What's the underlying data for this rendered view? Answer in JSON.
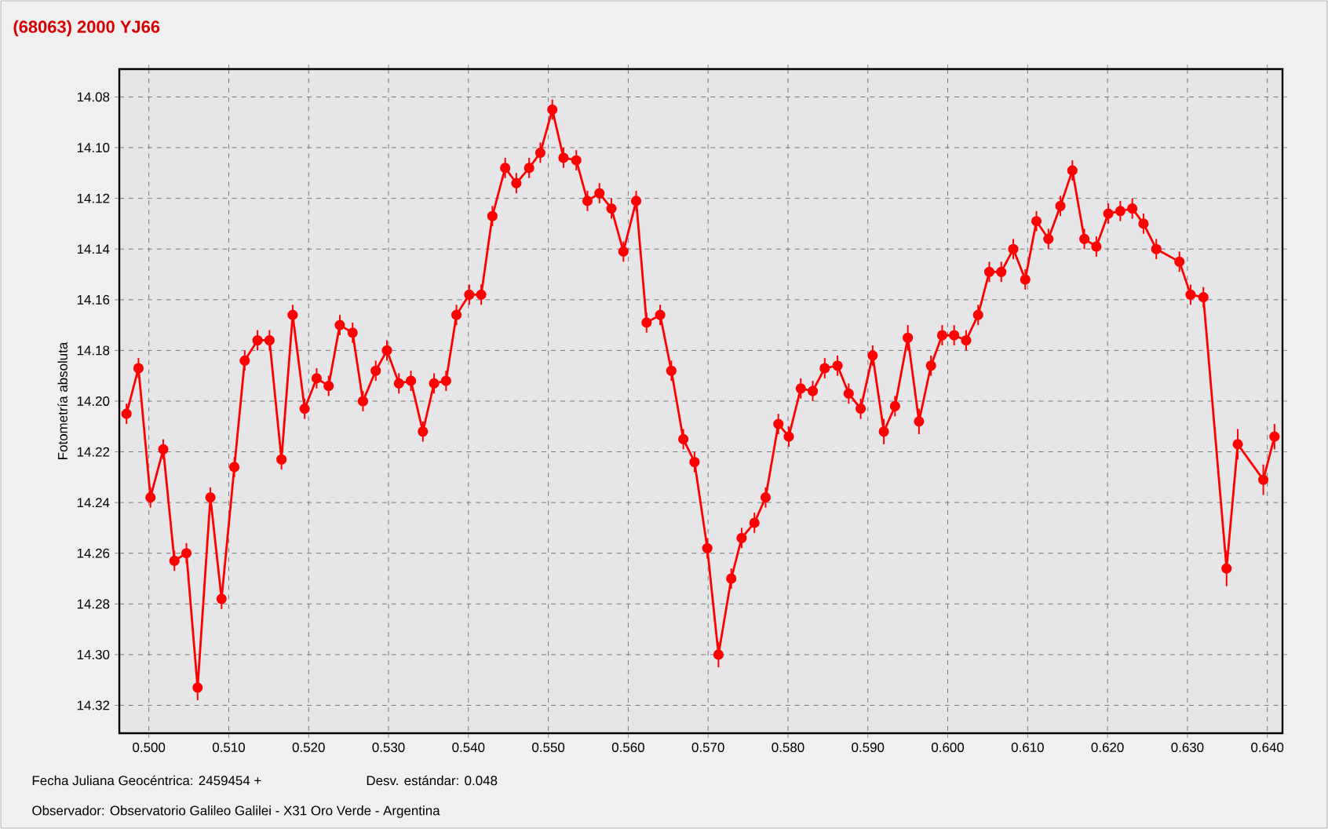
{
  "chart_data": {
    "type": "line",
    "title": "(68063) 2000 YJ66",
    "ylabel": "Fotometría absoluta",
    "annotations": [
      "Fecha Juliana Geocéntrica: 2459454 +",
      "Desv. estándar: 0.048",
      "Observador: Observatorio Galileo Galilei - X31 Oro Verde - Argentina"
    ],
    "x": [
      0.4972,
      0.4987,
      0.5002,
      0.5018,
      0.5032,
      0.5047,
      0.5061,
      0.5077,
      0.5091,
      0.5107,
      0.512,
      0.5136,
      0.5151,
      0.5166,
      0.518,
      0.5195,
      0.521,
      0.5225,
      0.5239,
      0.5255,
      0.5268,
      0.5284,
      0.5298,
      0.5313,
      0.5328,
      0.5343,
      0.5357,
      0.5372,
      0.5385,
      0.5401,
      0.5416,
      0.543,
      0.5446,
      0.546,
      0.5476,
      0.549,
      0.5505,
      0.5519,
      0.5535,
      0.5549,
      0.5564,
      0.5579,
      0.5594,
      0.561,
      0.5623,
      0.564,
      0.5654,
      0.5669,
      0.5683,
      0.5699,
      0.5713,
      0.5729,
      0.5742,
      0.5758,
      0.5772,
      0.5788,
      0.5801,
      0.5816,
      0.5831,
      0.5846,
      0.5862,
      0.5876,
      0.5891,
      0.5906,
      0.592,
      0.5934,
      0.595,
      0.5964,
      0.5979,
      0.5993,
      0.6008,
      0.6023,
      0.6038,
      0.6052,
      0.6067,
      0.6082,
      0.6097,
      0.6111,
      0.6126,
      0.6141,
      0.6156,
      0.6171,
      0.6186,
      0.6201,
      0.6216,
      0.6231,
      0.6245,
      0.6261,
      0.629,
      0.6304,
      0.632,
      0.6349,
      0.6363,
      0.6395,
      0.6409
    ],
    "series": [
      {
        "color": "#ff0000",
        "values": [
          14.205,
          14.187,
          14.238,
          14.219,
          14.263,
          14.26,
          14.313,
          14.238,
          14.278,
          14.226,
          14.184,
          14.176,
          14.176,
          14.223,
          14.166,
          14.203,
          14.191,
          14.194,
          14.17,
          14.173,
          14.2,
          14.188,
          14.18,
          14.193,
          14.192,
          14.212,
          14.193,
          14.192,
          14.166,
          14.158,
          14.158,
          14.127,
          14.108,
          14.114,
          14.108,
          14.102,
          14.085,
          14.104,
          14.105,
          14.121,
          14.118,
          14.124,
          14.141,
          14.121,
          14.169,
          14.166,
          14.188,
          14.215,
          14.224,
          14.258,
          14.3,
          14.27,
          14.254,
          14.248,
          14.238,
          14.209,
          14.214,
          14.195,
          14.196,
          14.187,
          14.186,
          14.197,
          14.203,
          14.182,
          14.212,
          14.202,
          14.175,
          14.208,
          14.186,
          14.174,
          14.174,
          14.176,
          14.166,
          14.149,
          14.149,
          14.14,
          14.152,
          14.129,
          14.136,
          14.123,
          14.109,
          14.136,
          14.139,
          14.126,
          14.125,
          14.124,
          14.13,
          14.14,
          14.145,
          14.158,
          14.159,
          14.266,
          14.217,
          14.231,
          14.214
        ],
        "errors": [
          0.004,
          0.004,
          0.004,
          0.004,
          0.004,
          0.004,
          0.005,
          0.004,
          0.004,
          0.004,
          0.004,
          0.004,
          0.004,
          0.004,
          0.004,
          0.004,
          0.004,
          0.004,
          0.004,
          0.004,
          0.004,
          0.004,
          0.004,
          0.004,
          0.004,
          0.004,
          0.004,
          0.004,
          0.004,
          0.004,
          0.004,
          0.004,
          0.004,
          0.004,
          0.004,
          0.004,
          0.004,
          0.004,
          0.004,
          0.004,
          0.004,
          0.004,
          0.004,
          0.004,
          0.004,
          0.004,
          0.004,
          0.004,
          0.004,
          0.004,
          0.005,
          0.004,
          0.004,
          0.004,
          0.004,
          0.004,
          0.004,
          0.004,
          0.004,
          0.004,
          0.004,
          0.004,
          0.004,
          0.004,
          0.005,
          0.004,
          0.005,
          0.005,
          0.004,
          0.004,
          0.004,
          0.004,
          0.004,
          0.004,
          0.004,
          0.004,
          0.004,
          0.004,
          0.004,
          0.004,
          0.004,
          0.004,
          0.004,
          0.004,
          0.004,
          0.004,
          0.004,
          0.004,
          0.004,
          0.004,
          0.004,
          0.007,
          0.006,
          0.006,
          0.005
        ]
      }
    ],
    "xlim": [
      0.4963,
      0.6419
    ],
    "ylim": [
      14.331,
      14.069
    ],
    "xticks": [
      {
        "value": 0.5,
        "label": "0.500"
      },
      {
        "value": 0.51,
        "label": "0.510"
      },
      {
        "value": 0.52,
        "label": "0.520"
      },
      {
        "value": 0.53,
        "label": "0.530"
      },
      {
        "value": 0.54,
        "label": "0.540"
      },
      {
        "value": 0.55,
        "label": "0.550"
      },
      {
        "value": 0.56,
        "label": "0.560"
      },
      {
        "value": 0.57,
        "label": "0.570"
      },
      {
        "value": 0.58,
        "label": "0.580"
      },
      {
        "value": 0.59,
        "label": "0.590"
      },
      {
        "value": 0.6,
        "label": "0.600"
      },
      {
        "value": 0.61,
        "label": "0.610"
      },
      {
        "value": 0.62,
        "label": "0.620"
      },
      {
        "value": 0.63,
        "label": "0.630"
      },
      {
        "value": 0.64,
        "label": "0.640"
      }
    ],
    "yticks": [
      14.08,
      {
        "value": 14.1,
        "label": "14.10"
      },
      14.12,
      14.14,
      14.16,
      14.18,
      {
        "value": 14.2,
        "label": "14.20"
      },
      14.22,
      14.24,
      14.26,
      14.28,
      {
        "value": 14.3,
        "label": "14.30"
      },
      14.32
    ],
    "grid": true,
    "marker": "circle",
    "line_style": "solid"
  }
}
